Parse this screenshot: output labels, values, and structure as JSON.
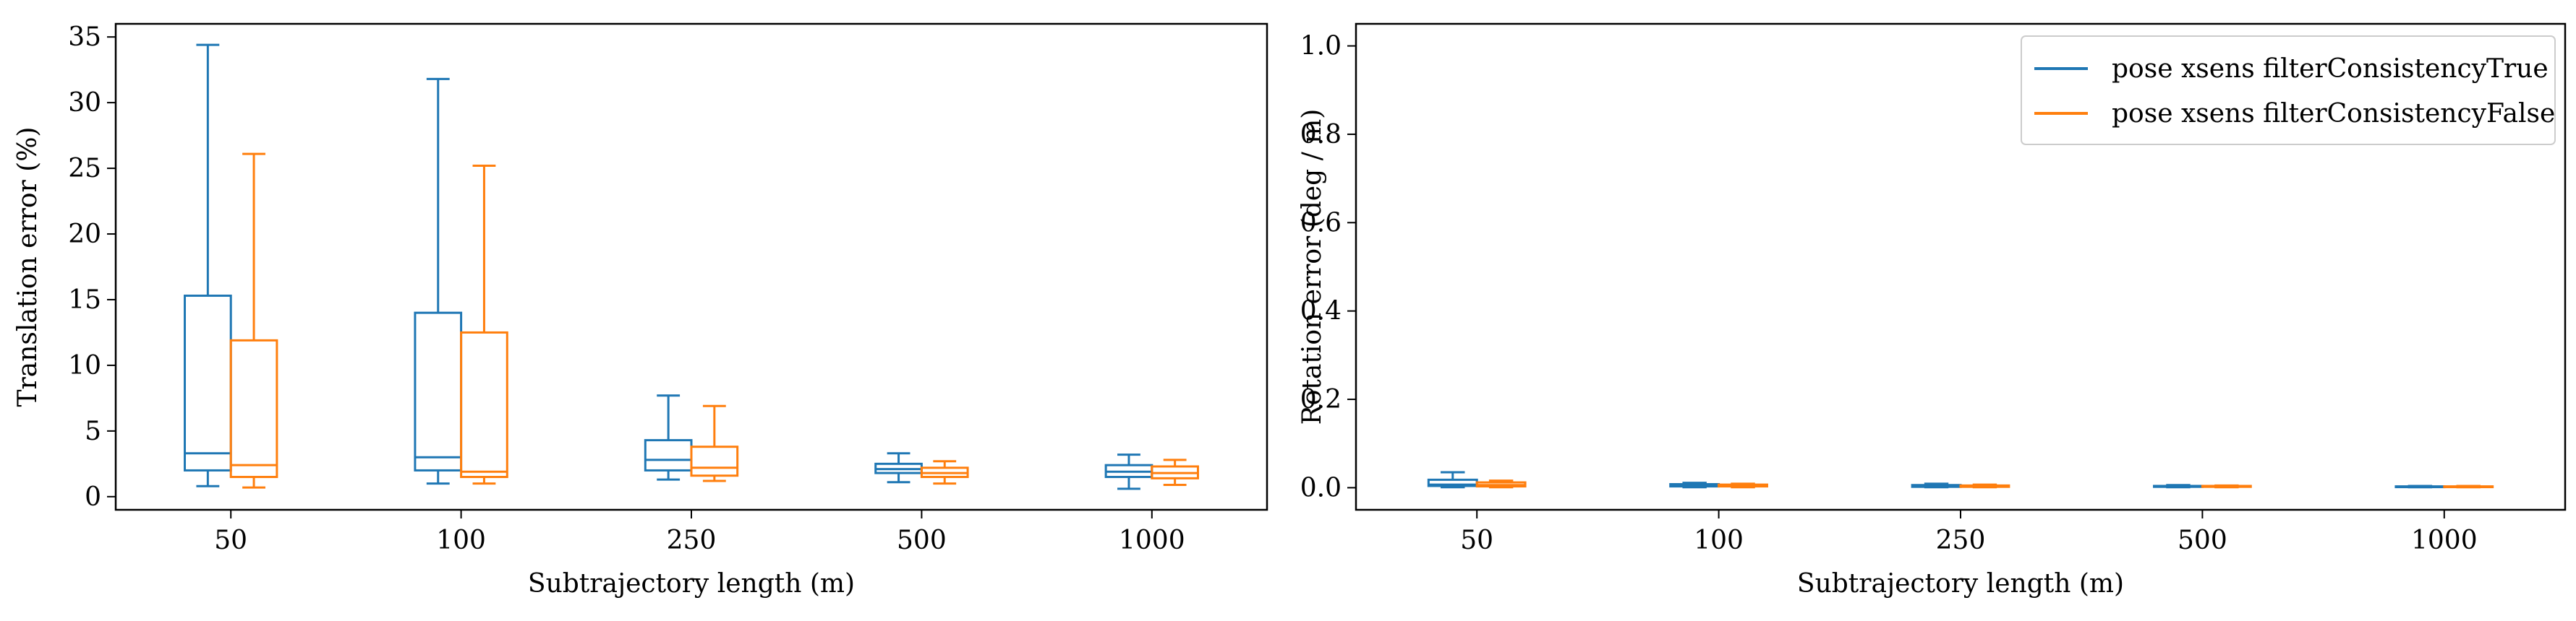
{
  "colors": {
    "series_true": "#1f77b4",
    "series_false": "#ff7f0e",
    "axis": "#000000"
  },
  "chart_data": [
    {
      "type": "box",
      "xlabel": "Subtrajectory length (m)",
      "ylabel": "Translation error (%)",
      "ylim": [
        -1,
        36
      ],
      "yticks": [
        0,
        5,
        10,
        15,
        20,
        25,
        30,
        35
      ],
      "categories": [
        "50",
        "100",
        "250",
        "500",
        "1000"
      ],
      "grid": false,
      "legend": null,
      "series": [
        {
          "name": "pose xsens filterConsistencyTrue",
          "color": "#1f77b4",
          "boxes": [
            {
              "whislo": 0.8,
              "q1": 2.0,
              "med": 3.3,
              "q3": 15.3,
              "whishi": 34.4
            },
            {
              "whislo": 1.0,
              "q1": 2.0,
              "med": 3.0,
              "q3": 14.0,
              "whishi": 31.8
            },
            {
              "whislo": 1.3,
              "q1": 2.0,
              "med": 2.8,
              "q3": 4.3,
              "whishi": 7.7
            },
            {
              "whislo": 1.1,
              "q1": 1.8,
              "med": 2.1,
              "q3": 2.5,
              "whishi": 3.3
            },
            {
              "whislo": 0.6,
              "q1": 1.5,
              "med": 1.9,
              "q3": 2.4,
              "whishi": 3.2
            }
          ]
        },
        {
          "name": "pose xsens filterConsistencyFalse",
          "color": "#ff7f0e",
          "boxes": [
            {
              "whislo": 0.7,
              "q1": 1.5,
              "med": 2.4,
              "q3": 11.9,
              "whishi": 26.1
            },
            {
              "whislo": 1.0,
              "q1": 1.5,
              "med": 1.9,
              "q3": 12.5,
              "whishi": 25.2
            },
            {
              "whislo": 1.2,
              "q1": 1.6,
              "med": 2.2,
              "q3": 3.8,
              "whishi": 6.9
            },
            {
              "whislo": 1.0,
              "q1": 1.5,
              "med": 1.8,
              "q3": 2.2,
              "whishi": 2.7
            },
            {
              "whislo": 0.9,
              "q1": 1.4,
              "med": 1.8,
              "q3": 2.3,
              "whishi": 2.8
            }
          ]
        }
      ]
    },
    {
      "type": "box",
      "xlabel": "Subtrajectory length (m)",
      "ylabel": "Rotation error (deg / m)",
      "ylim": [
        -0.05,
        1.05
      ],
      "yticks": [
        0.0,
        0.2,
        0.4,
        0.6,
        0.8,
        1.0
      ],
      "categories": [
        "50",
        "100",
        "250",
        "500",
        "1000"
      ],
      "grid": false,
      "legend": "top-right",
      "series": [
        {
          "name": "pose xsens filterConsistencyTrue",
          "color": "#1f77b4",
          "boxes": [
            {
              "whislo": 0.001,
              "q1": 0.004,
              "med": 0.007,
              "q3": 0.018,
              "whishi": 0.035
            },
            {
              "whislo": 0.001,
              "q1": 0.003,
              "med": 0.005,
              "q3": 0.008,
              "whishi": 0.011
            },
            {
              "whislo": 0.001,
              "q1": 0.002,
              "med": 0.004,
              "q3": 0.006,
              "whishi": 0.009
            },
            {
              "whislo": 0.001,
              "q1": 0.002,
              "med": 0.003,
              "q3": 0.004,
              "whishi": 0.006
            },
            {
              "whislo": 0.001,
              "q1": 0.002,
              "med": 0.002,
              "q3": 0.003,
              "whishi": 0.004
            }
          ]
        },
        {
          "name": "pose xsens filterConsistencyFalse",
          "color": "#ff7f0e",
          "boxes": [
            {
              "whislo": 0.001,
              "q1": 0.003,
              "med": 0.006,
              "q3": 0.012,
              "whishi": 0.016
            },
            {
              "whislo": 0.001,
              "q1": 0.003,
              "med": 0.004,
              "q3": 0.007,
              "whishi": 0.009
            },
            {
              "whislo": 0.001,
              "q1": 0.002,
              "med": 0.003,
              "q3": 0.005,
              "whishi": 0.007
            },
            {
              "whislo": 0.001,
              "q1": 0.002,
              "med": 0.003,
              "q3": 0.004,
              "whishi": 0.005
            },
            {
              "whislo": 0.001,
              "q1": 0.002,
              "med": 0.002,
              "q3": 0.003,
              "whishi": 0.004
            }
          ]
        }
      ]
    }
  ]
}
